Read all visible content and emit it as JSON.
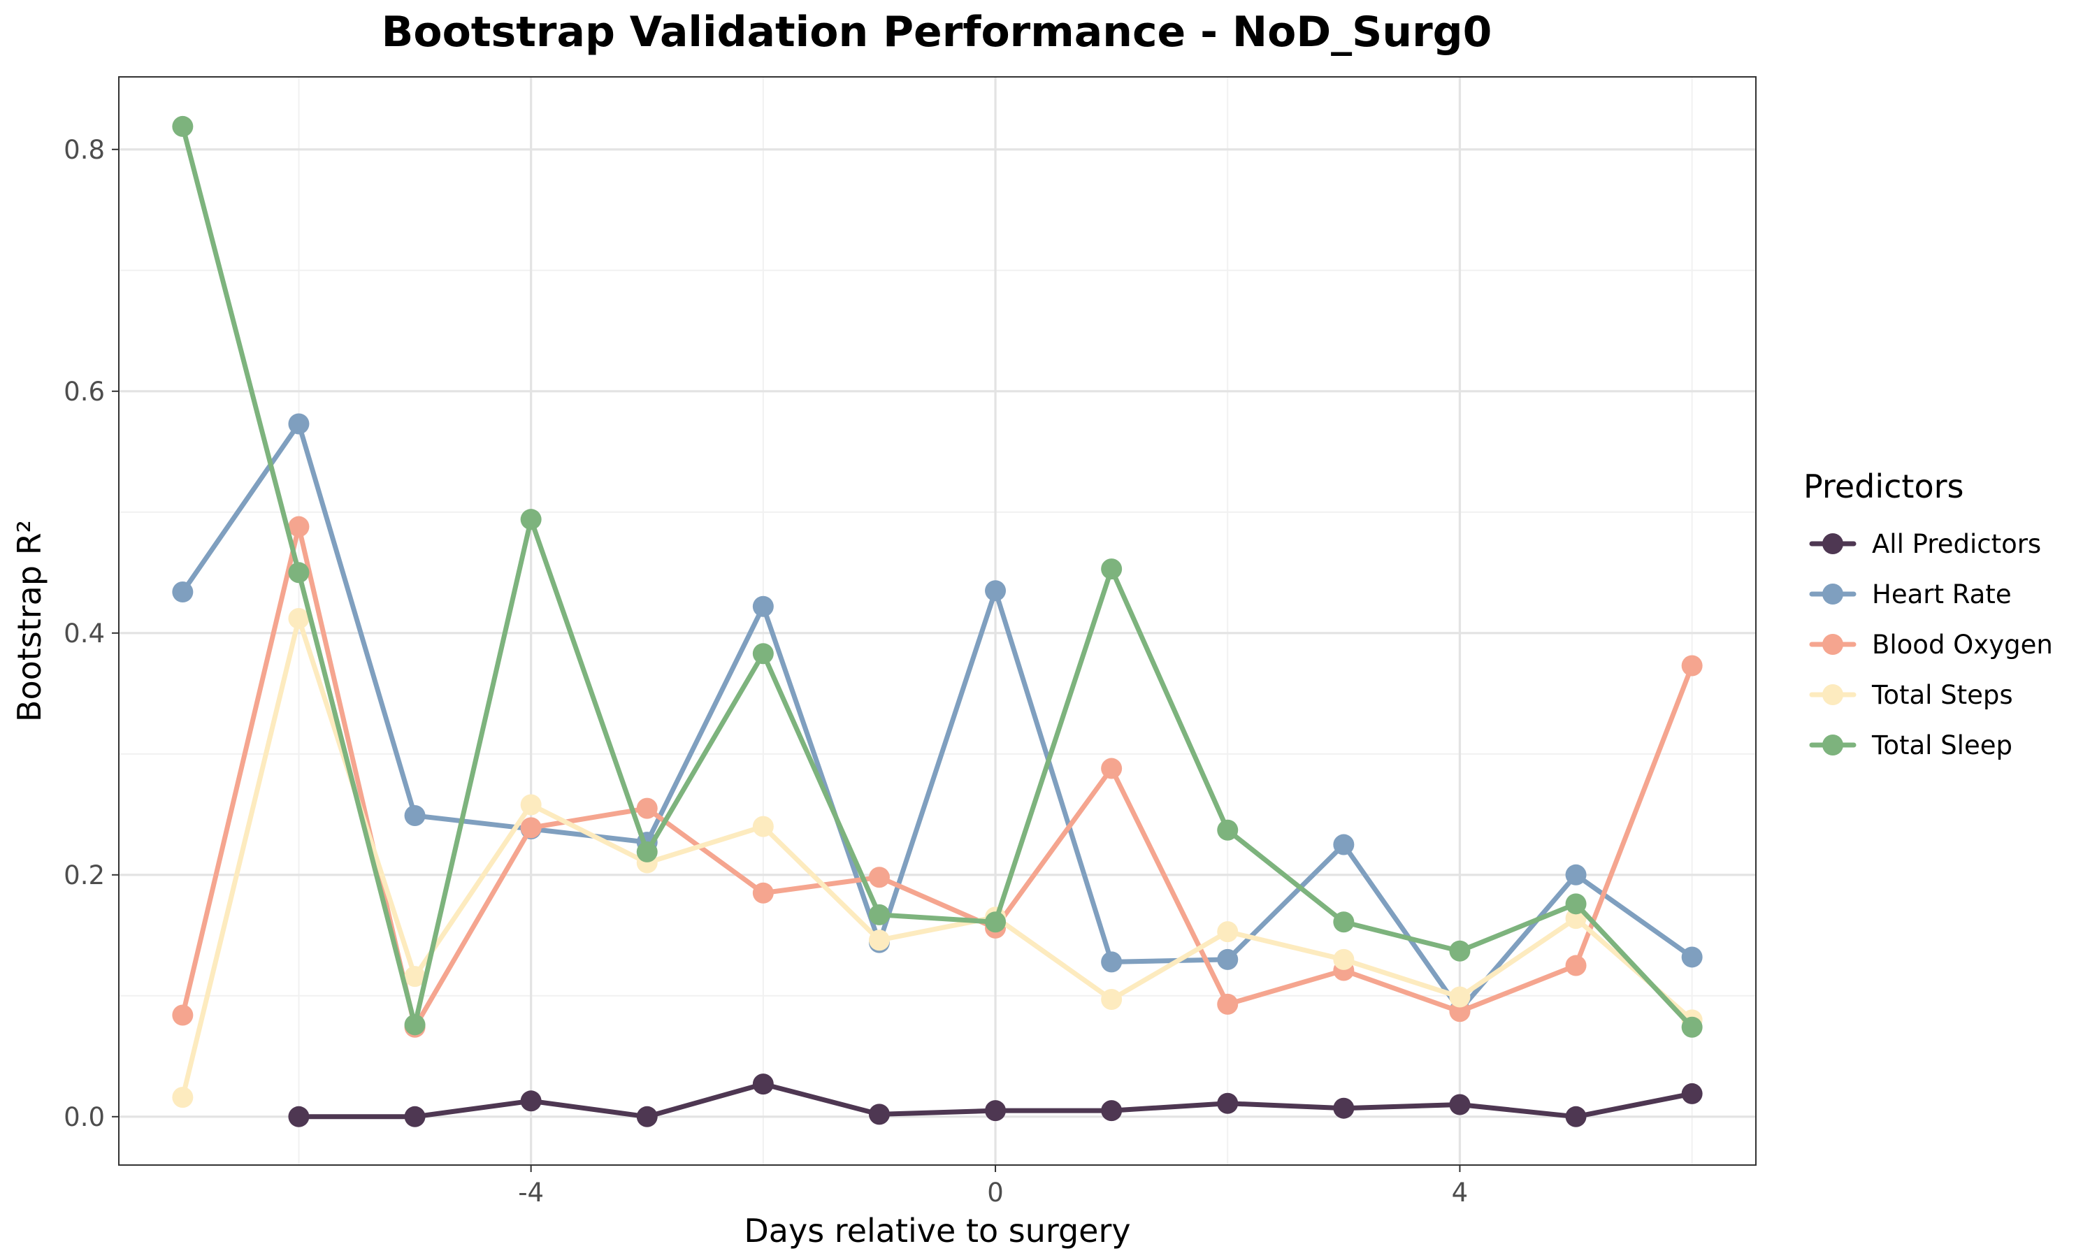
{
  "chart_data": {
    "type": "line",
    "title": "Bootstrap Validation Performance - NoD_Surg0",
    "xlabel": "Days relative to surgery",
    "ylabel": "Bootstrap R²",
    "xlim": [
      -7.55,
      6.55
    ],
    "ylim": [
      -0.04,
      0.86
    ],
    "x_ticks": [
      -4,
      0,
      4
    ],
    "x_tick_labels": [
      "-4",
      "0",
      "4"
    ],
    "y_ticks": [
      0.0,
      0.2,
      0.4,
      0.6,
      0.8
    ],
    "y_tick_labels": [
      "0.0",
      "0.2",
      "0.4",
      "0.6",
      "0.8"
    ],
    "grid": true,
    "legend_title": "Predictors",
    "legend_position": "right",
    "series": [
      {
        "name": "Heart Rate",
        "color": "#7f9fbf",
        "x": [
          -7,
          -6,
          -5,
          -4,
          -3,
          -2,
          -1,
          0,
          1,
          2,
          3,
          4,
          5,
          6
        ],
        "values": [
          0.434,
          0.573,
          0.249,
          0.238,
          0.227,
          0.422,
          0.144,
          0.435,
          0.128,
          0.13,
          0.225,
          0.088,
          0.2,
          0.132
        ]
      },
      {
        "name": "Blood Oxygen",
        "color": "#f5a58f",
        "x": [
          -7,
          -6,
          -5,
          -4,
          -3,
          -2,
          -1,
          0,
          1,
          2,
          3,
          4,
          5,
          6
        ],
        "values": [
          0.084,
          0.488,
          0.074,
          0.239,
          0.255,
          0.185,
          0.198,
          0.156,
          0.288,
          0.093,
          0.121,
          0.087,
          0.125,
          0.373
        ]
      },
      {
        "name": "Total Steps",
        "color": "#fdebbf",
        "x": [
          -7,
          -6,
          -5,
          -4,
          -3,
          -2,
          -1,
          0,
          1,
          2,
          3,
          4,
          5,
          6
        ],
        "values": [
          0.016,
          0.412,
          0.116,
          0.258,
          0.21,
          0.24,
          0.146,
          0.165,
          0.097,
          0.153,
          0.13,
          0.099,
          0.164,
          0.08
        ]
      },
      {
        "name": "Total Sleep",
        "color": "#7db37d",
        "x": [
          -7,
          -6,
          -5,
          -4,
          -3,
          -2,
          -1,
          0,
          1,
          2,
          3,
          4,
          5,
          6
        ],
        "values": [
          0.819,
          0.45,
          0.076,
          0.494,
          0.219,
          0.383,
          0.167,
          0.161,
          0.453,
          0.237,
          0.161,
          0.137,
          0.176,
          0.074
        ]
      },
      {
        "name": "All Predictors",
        "color": "#4e3752",
        "x": [
          -6,
          -5,
          -4,
          -3,
          -2,
          -1,
          0,
          1,
          2,
          3,
          4,
          5,
          6
        ],
        "values": [
          0.0,
          0.0,
          0.013,
          0.0,
          0.027,
          0.002,
          0.005,
          0.005,
          0.011,
          0.007,
          0.01,
          0.0,
          0.019
        ]
      }
    ],
    "legend_order": [
      "All Predictors",
      "Heart Rate",
      "Blood Oxygen",
      "Total Steps",
      "Total Sleep"
    ]
  }
}
